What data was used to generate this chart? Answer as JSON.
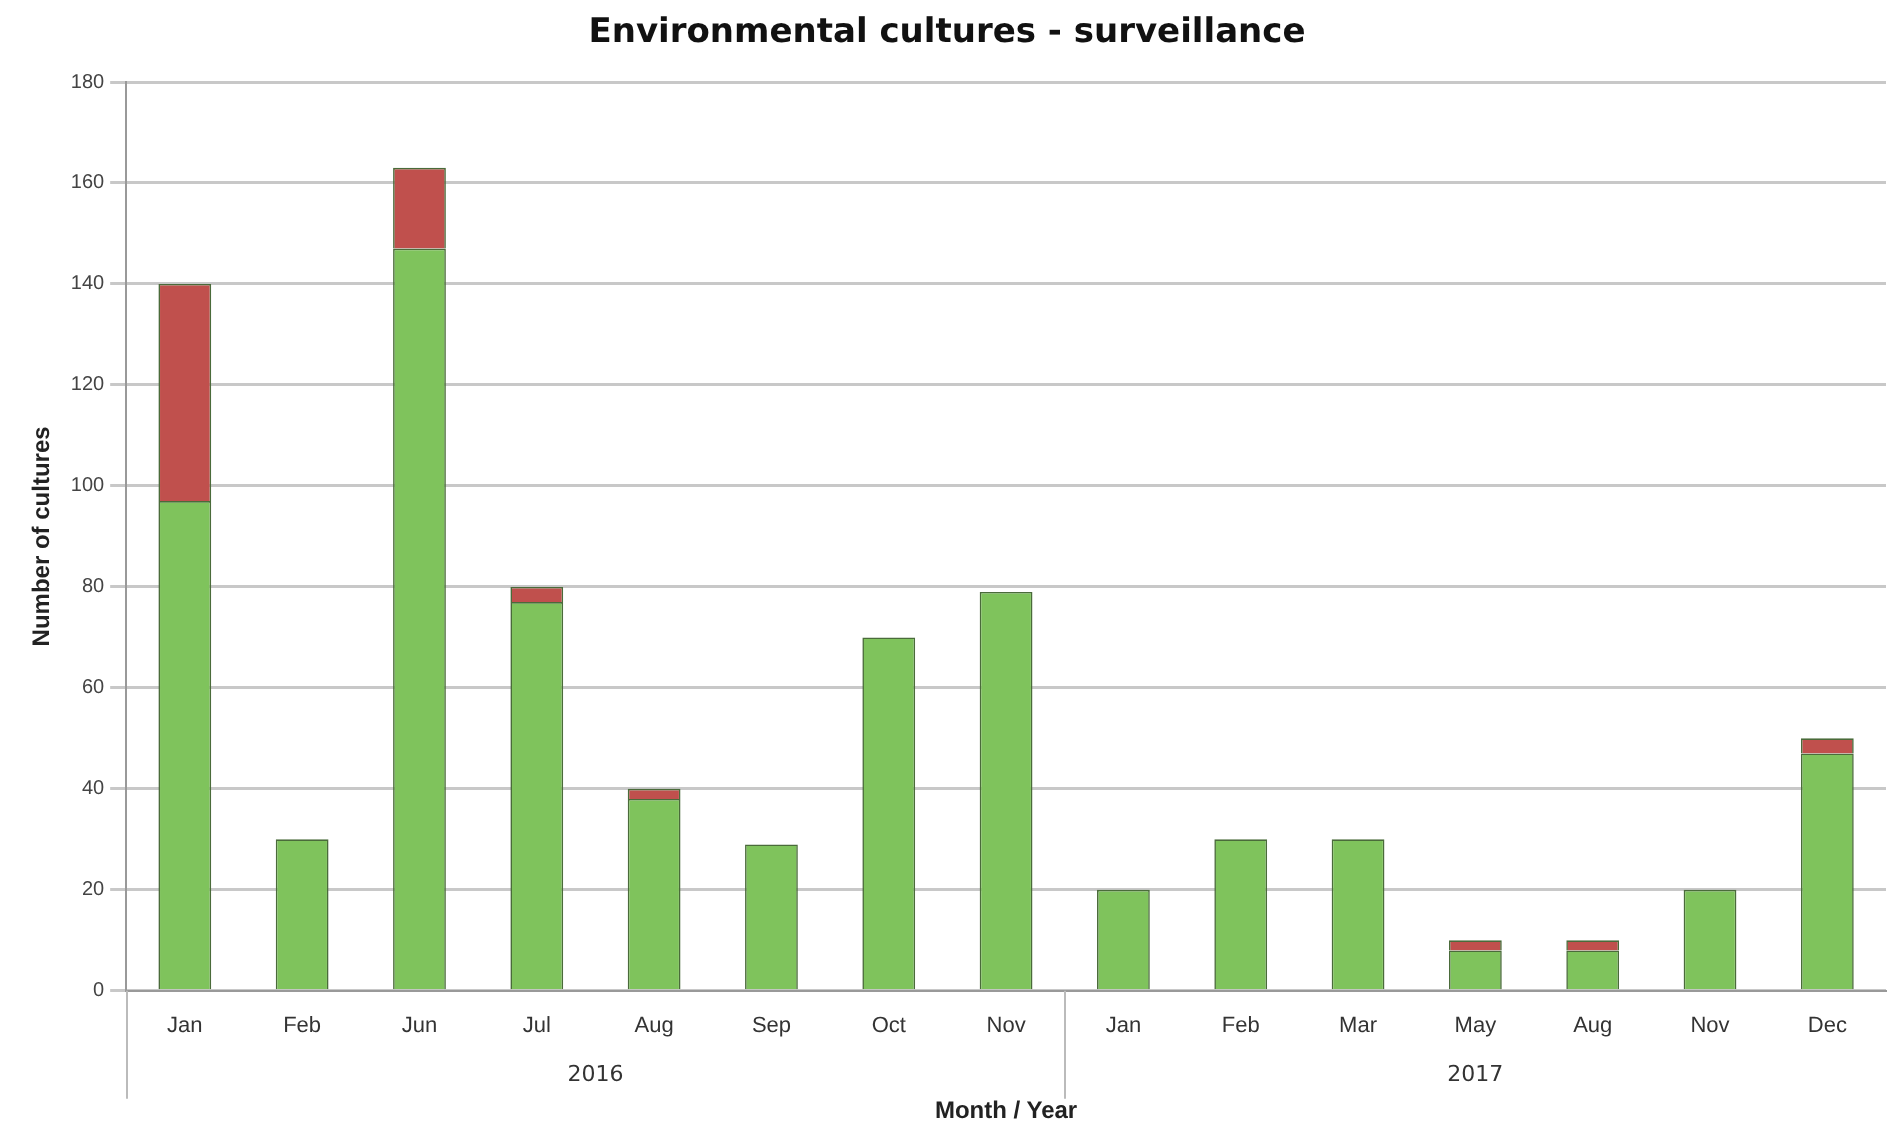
{
  "chart_data": {
    "type": "bar",
    "title": "Environmental cultures - surveillance",
    "xlabel": "Month / Year",
    "ylabel": "Number of cultures",
    "categories": [
      "Jan",
      "Feb",
      "Jun",
      "Jul",
      "Aug",
      "Sep",
      "Oct",
      "Nov",
      "Jan",
      "Feb",
      "Mar",
      "May",
      "Aug",
      "Nov",
      "Dec"
    ],
    "series": [
      {
        "color": "#7fc35c",
        "values": [
          97,
          30,
          147,
          77,
          38,
          29,
          70,
          79,
          20,
          30,
          30,
          8,
          8,
          20,
          47
        ]
      },
      {
        "color": "#c0504d",
        "values": [
          43,
          0,
          16,
          3,
          2,
          0,
          0,
          0,
          0,
          0,
          0,
          2,
          2,
          0,
          3
        ]
      }
    ],
    "stacked": true,
    "ylim": [
      0,
      180
    ],
    "yticks": [
      0,
      20,
      40,
      60,
      80,
      100,
      120,
      140,
      160,
      180
    ],
    "grid": "y",
    "legend": false,
    "annotations": [
      "2016",
      "2017"
    ]
  }
}
